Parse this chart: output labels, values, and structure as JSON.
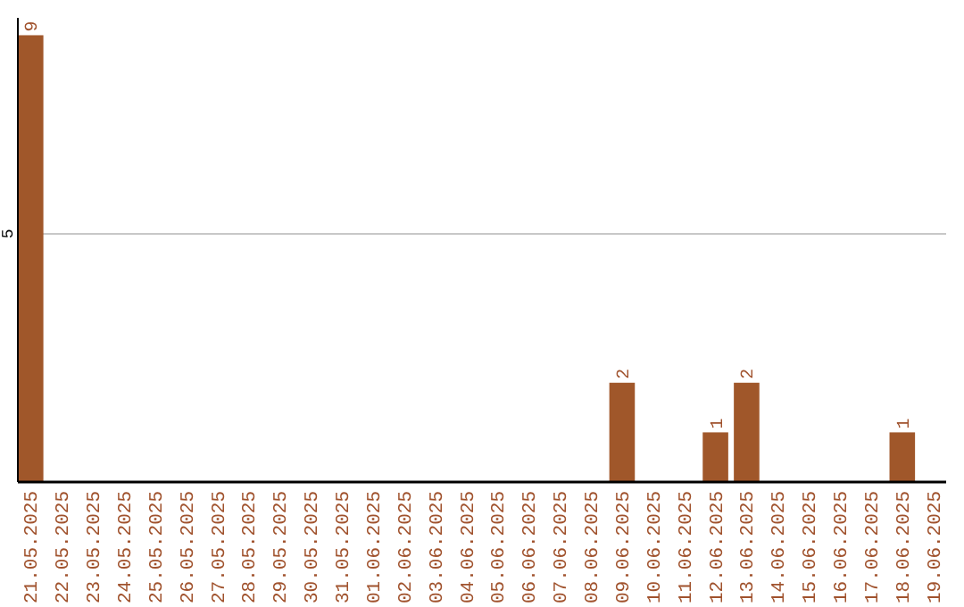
{
  "chart_data": {
    "type": "bar",
    "categories": [
      "21.05.2025",
      "22.05.2025",
      "23.05.2025",
      "24.05.2025",
      "25.05.2025",
      "26.05.2025",
      "27.05.2025",
      "28.05.2025",
      "29.05.2025",
      "30.05.2025",
      "31.05.2025",
      "01.06.2025",
      "02.06.2025",
      "03.06.2025",
      "04.06.2025",
      "05.06.2025",
      "06.06.2025",
      "07.06.2025",
      "08.06.2025",
      "09.06.2025",
      "10.06.2025",
      "11.06.2025",
      "12.06.2025",
      "13.06.2025",
      "14.06.2025",
      "15.06.2025",
      "16.06.2025",
      "17.06.2025",
      "18.06.2025",
      "19.06.2025"
    ],
    "values": [
      9,
      0,
      0,
      0,
      0,
      0,
      0,
      0,
      0,
      0,
      0,
      0,
      0,
      0,
      0,
      0,
      0,
      0,
      0,
      2,
      0,
      0,
      1,
      2,
      0,
      0,
      0,
      0,
      1,
      0
    ],
    "value_labels": [
      "9",
      null,
      null,
      null,
      null,
      null,
      null,
      null,
      null,
      null,
      null,
      null,
      null,
      null,
      null,
      null,
      null,
      null,
      null,
      "2",
      null,
      null,
      "1",
      "2",
      null,
      null,
      null,
      null,
      "1",
      null
    ],
    "color": "#a0572a",
    "ylim": [
      0,
      9.35
    ],
    "yticks": [
      5
    ],
    "grid": "y"
  }
}
